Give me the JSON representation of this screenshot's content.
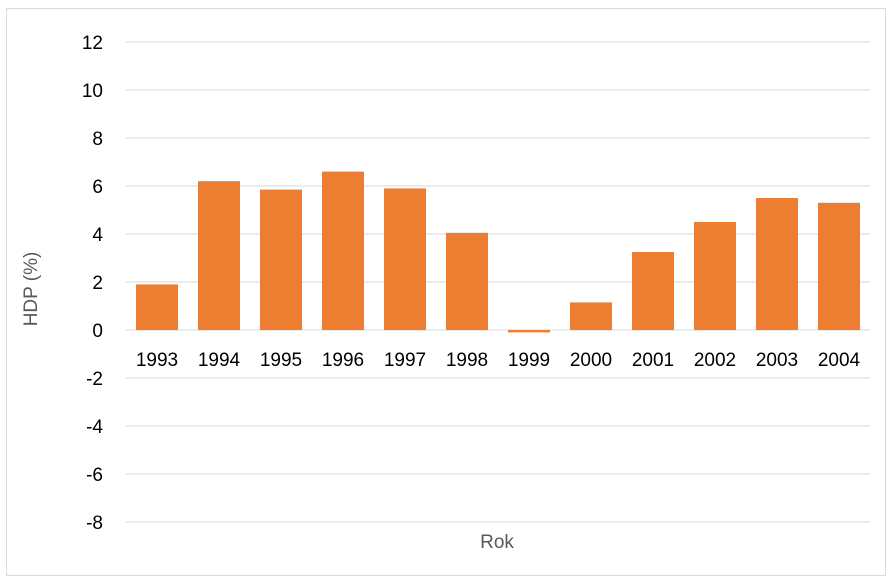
{
  "chart_data": {
    "type": "bar",
    "categories": [
      "1993",
      "1994",
      "1995",
      "1996",
      "1997",
      "1998",
      "1999",
      "2000",
      "2001",
      "2002",
      "2003",
      "2004"
    ],
    "values": [
      1.9,
      6.2,
      5.85,
      6.6,
      5.9,
      4.05,
      -0.1,
      1.15,
      3.25,
      4.5,
      5.5,
      5.3
    ],
    "title": "",
    "xlabel": "Rok",
    "ylabel": "HDP (%)",
    "ylim": [
      -8,
      12
    ],
    "yticks": [
      -8,
      -6,
      -4,
      -2,
      0,
      2,
      4,
      6,
      8,
      10,
      12
    ],
    "grid": true,
    "legend": "none",
    "bar_color": "#ED7D31",
    "grid_color": "#D9D9D9"
  }
}
